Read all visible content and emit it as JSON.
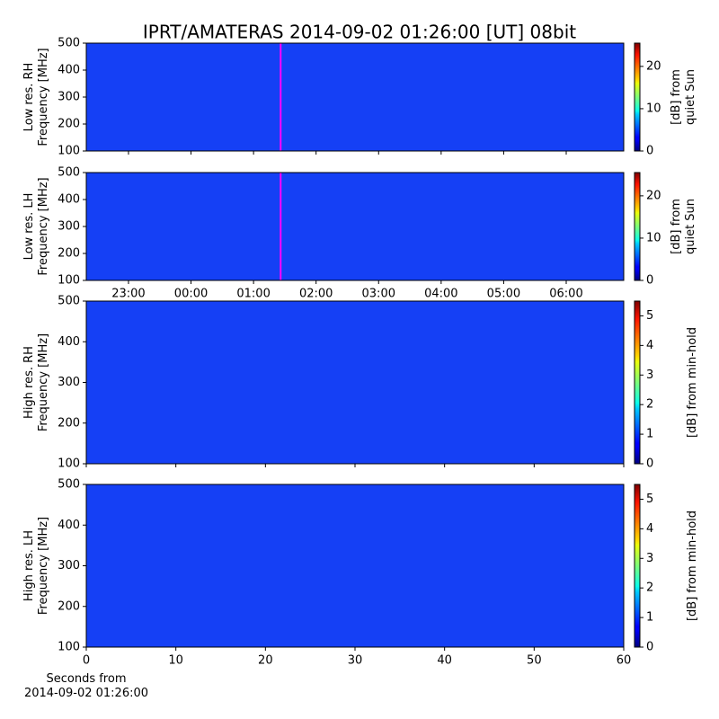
{
  "title": "IPRT/AMATERAS 2014-09-02 01:26:00 [UT]   08bit",
  "chart_data": [
    {
      "type": "heatmap",
      "cmap": "jet",
      "ylabel": "Low res. RH\nFrequency [MHz]",
      "xlim": [
        -1.675,
        6.92
      ],
      "xticks": [
        -1,
        0,
        1,
        2,
        3,
        4,
        5,
        6
      ],
      "ylim": [
        100,
        500
      ],
      "yticks": [
        100,
        200,
        300,
        400,
        500
      ],
      "marker_x": 1.4333,
      "marker_color": "#ff00ff",
      "colorbar": {
        "label": "[dB] from\nquiet Sun",
        "lim": [
          0,
          25.5
        ],
        "ticks": [
          0,
          10,
          20
        ]
      }
    },
    {
      "type": "heatmap",
      "cmap": "jet",
      "ylabel": "Low res. LH\nFrequency [MHz]",
      "xlim": [
        -1.675,
        6.92
      ],
      "xticks": [
        {
          "value": -1,
          "label": "23:00"
        },
        {
          "value": 0,
          "label": "00:00"
        },
        {
          "value": 1,
          "label": "01:00"
        },
        {
          "value": 2,
          "label": "02:00"
        },
        {
          "value": 3,
          "label": "03:00"
        },
        {
          "value": 4,
          "label": "04:00"
        },
        {
          "value": 5,
          "label": "05:00"
        },
        {
          "value": 6,
          "label": "06:00"
        }
      ],
      "xticklabels": true,
      "ylim": [
        100,
        500
      ],
      "yticks": [
        100,
        200,
        300,
        400,
        500
      ],
      "marker_x": 1.4333,
      "marker_color": "#ff00ff",
      "colorbar": {
        "label": "[dB] from\nquiet Sun",
        "lim": [
          0,
          25.5
        ],
        "ticks": [
          0,
          10,
          20
        ]
      }
    },
    {
      "type": "heatmap",
      "cmap": "jet",
      "ylabel": "High res. RH\nFrequency [MHz]",
      "xlim": [
        0,
        60
      ],
      "xticks": [
        0,
        10,
        20,
        30,
        40,
        50,
        60
      ],
      "ylim": [
        100,
        500
      ],
      "yticks": [
        100,
        200,
        300,
        400,
        500
      ],
      "colorbar": {
        "label": "[dB] from min-hold",
        "lim": [
          0,
          5.5
        ],
        "ticks": [
          0,
          1,
          2,
          3,
          4,
          5
        ]
      }
    },
    {
      "type": "heatmap",
      "cmap": "jet",
      "ylabel": "High res. LH\nFrequency [MHz]",
      "xlabel": "Seconds from\n2014-09-02 01:26:00",
      "xlim": [
        0,
        60
      ],
      "xticks": [
        0,
        10,
        20,
        30,
        40,
        50,
        60
      ],
      "xticklabels": true,
      "ylim": [
        100,
        500
      ],
      "yticks": [
        100,
        200,
        300,
        400,
        500
      ],
      "colorbar": {
        "label": "[dB] from min-hold",
        "lim": [
          0,
          5.5
        ],
        "ticks": [
          0,
          1,
          2,
          3,
          4,
          5
        ]
      }
    }
  ]
}
